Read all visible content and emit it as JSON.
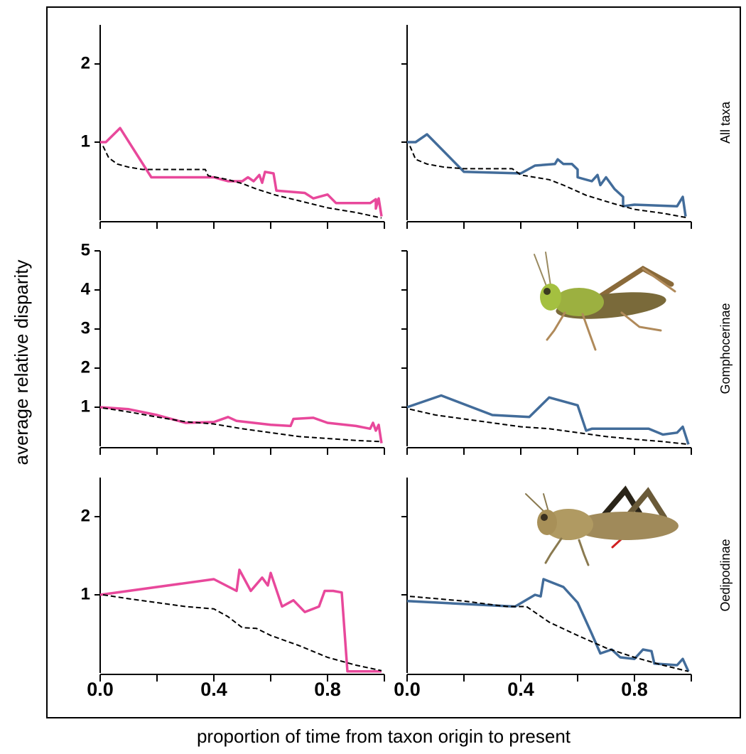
{
  "xlabel": "proportion of time from taxon origin to present",
  "ylabel": "average relative disparity",
  "chart_data": [
    {
      "type": "line",
      "xlim": [
        0,
        1
      ],
      "ylim": [
        0,
        2.5
      ],
      "yticks": [
        1,
        2
      ],
      "xtick_marks": [
        0,
        0.2,
        0.4,
        0.6,
        0.8,
        1.0
      ],
      "series": [
        {
          "color": "#e8489b",
          "dashed": false,
          "x": [
            0,
            0.02,
            0.07,
            0.18,
            0.4,
            0.45,
            0.5,
            0.52,
            0.54,
            0.56,
            0.57,
            0.58,
            0.61,
            0.62,
            0.72,
            0.75,
            0.8,
            0.83,
            0.95,
            0.97,
            0.97,
            0.98,
            0.99
          ],
          "values": [
            1.0,
            1.0,
            1.18,
            0.55,
            0.55,
            0.5,
            0.5,
            0.55,
            0.5,
            0.58,
            0.48,
            0.62,
            0.6,
            0.38,
            0.35,
            0.28,
            0.33,
            0.22,
            0.22,
            0.27,
            0.15,
            0.28,
            0.05
          ]
        },
        {
          "color": "#000000",
          "dashed": true,
          "x": [
            0.01,
            0.03,
            0.06,
            0.1,
            0.15,
            0.37,
            0.38,
            0.45,
            0.5,
            0.55,
            0.62,
            0.7,
            0.8,
            0.9,
            0.99
          ],
          "values": [
            0.95,
            0.8,
            0.72,
            0.68,
            0.65,
            0.65,
            0.57,
            0.52,
            0.47,
            0.4,
            0.32,
            0.25,
            0.16,
            0.1,
            0.03
          ]
        }
      ]
    },
    {
      "type": "line",
      "xlim": [
        0,
        1
      ],
      "ylim": [
        0,
        2.5
      ],
      "ytick_marks": [
        1,
        2
      ],
      "xtick_marks": [
        0,
        0.2,
        0.4,
        0.6,
        0.8,
        1.0
      ],
      "panel_label": "All taxa",
      "series": [
        {
          "color": "#426c9a",
          "dashed": false,
          "x": [
            0,
            0.03,
            0.07,
            0.2,
            0.4,
            0.45,
            0.52,
            0.53,
            0.55,
            0.58,
            0.6,
            0.6,
            0.65,
            0.67,
            0.68,
            0.7,
            0.73,
            0.76,
            0.76,
            0.8,
            0.95,
            0.97,
            0.98
          ],
          "values": [
            1.0,
            1.0,
            1.1,
            0.62,
            0.6,
            0.7,
            0.72,
            0.78,
            0.72,
            0.72,
            0.65,
            0.55,
            0.5,
            0.58,
            0.45,
            0.55,
            0.4,
            0.3,
            0.18,
            0.2,
            0.18,
            0.3,
            0.05
          ]
        },
        {
          "color": "#000000",
          "dashed": true,
          "x": [
            0.01,
            0.03,
            0.07,
            0.13,
            0.2,
            0.37,
            0.4,
            0.5,
            0.55,
            0.63,
            0.72,
            0.8,
            0.9,
            0.99
          ],
          "values": [
            0.95,
            0.78,
            0.72,
            0.68,
            0.66,
            0.66,
            0.58,
            0.52,
            0.45,
            0.32,
            0.22,
            0.14,
            0.09,
            0.03
          ]
        }
      ]
    },
    {
      "type": "line",
      "xlim": [
        0,
        1
      ],
      "ylim": [
        0,
        5
      ],
      "yticks": [
        1,
        2,
        3,
        4,
        5
      ],
      "xtick_marks": [
        0,
        0.2,
        0.4,
        0.6,
        0.8,
        1.0
      ],
      "series": [
        {
          "color": "#e8489b",
          "dashed": false,
          "x": [
            0,
            0.1,
            0.2,
            0.3,
            0.4,
            0.45,
            0.48,
            0.6,
            0.67,
            0.68,
            0.75,
            0.8,
            0.9,
            0.95,
            0.96,
            0.97,
            0.98,
            0.99
          ],
          "values": [
            1.0,
            0.95,
            0.8,
            0.6,
            0.62,
            0.75,
            0.65,
            0.55,
            0.52,
            0.7,
            0.73,
            0.6,
            0.52,
            0.45,
            0.6,
            0.4,
            0.55,
            0.08
          ]
        },
        {
          "color": "#000000",
          "dashed": true,
          "x": [
            0.01,
            0.1,
            0.2,
            0.3,
            0.4,
            0.5,
            0.6,
            0.7,
            0.8,
            0.9,
            0.99
          ],
          "values": [
            0.98,
            0.88,
            0.75,
            0.63,
            0.57,
            0.45,
            0.35,
            0.25,
            0.2,
            0.15,
            0.12
          ]
        }
      ]
    },
    {
      "type": "line",
      "xlim": [
        0,
        1
      ],
      "ylim": [
        0,
        5
      ],
      "ytick_marks": [
        1,
        2,
        3,
        4,
        5
      ],
      "xtick_marks": [
        0,
        0.2,
        0.4,
        0.6,
        0.8,
        1.0
      ],
      "panel_label": "Gomphocerinae",
      "series": [
        {
          "color": "#426c9a",
          "dashed": false,
          "x": [
            0,
            0.12,
            0.3,
            0.43,
            0.5,
            0.55,
            0.6,
            0.63,
            0.65,
            0.75,
            0.85,
            0.9,
            0.95,
            0.97,
            0.99
          ],
          "values": [
            1.0,
            1.3,
            0.8,
            0.75,
            1.25,
            1.15,
            1.05,
            0.4,
            0.45,
            0.45,
            0.45,
            0.3,
            0.35,
            0.5,
            0.05
          ]
        },
        {
          "color": "#000000",
          "dashed": true,
          "x": [
            0.01,
            0.1,
            0.2,
            0.3,
            0.4,
            0.5,
            0.6,
            0.7,
            0.8,
            0.9,
            0.99
          ],
          "values": [
            0.95,
            0.8,
            0.7,
            0.6,
            0.5,
            0.45,
            0.35,
            0.25,
            0.18,
            0.12,
            0.05
          ]
        }
      ]
    },
    {
      "type": "line",
      "xlim": [
        0,
        1
      ],
      "ylim": [
        0,
        2.5
      ],
      "yticks": [
        1,
        2
      ],
      "xtick_marks": [
        0,
        0.2,
        0.4,
        0.6,
        0.8,
        1.0
      ],
      "xticks": [
        {
          "value": 0,
          "label": "0.0"
        },
        0.4,
        0.8
      ],
      "series": [
        {
          "color": "#e8489b",
          "dashed": false,
          "x": [
            0,
            0.4,
            0.48,
            0.49,
            0.53,
            0.57,
            0.59,
            0.6,
            0.64,
            0.68,
            0.72,
            0.77,
            0.79,
            0.82,
            0.85,
            0.87,
            0.99
          ],
          "values": [
            1.0,
            1.2,
            1.05,
            1.32,
            1.05,
            1.22,
            1.12,
            1.28,
            0.85,
            0.93,
            0.78,
            0.85,
            1.05,
            1.05,
            1.03,
            0.02,
            0.02
          ]
        },
        {
          "color": "#000000",
          "dashed": true,
          "x": [
            0.01,
            0.1,
            0.2,
            0.3,
            0.4,
            0.45,
            0.5,
            0.55,
            0.6,
            0.7,
            0.8,
            0.9,
            0.99
          ],
          "values": [
            1.0,
            0.95,
            0.9,
            0.85,
            0.82,
            0.72,
            0.58,
            0.57,
            0.48,
            0.35,
            0.2,
            0.1,
            0.03
          ]
        }
      ]
    },
    {
      "type": "line",
      "xlim": [
        0,
        1
      ],
      "ylim": [
        0,
        2.5
      ],
      "ytick_marks": [
        1,
        2
      ],
      "xtick_marks": [
        0,
        0.2,
        0.4,
        0.6,
        0.8,
        1.0
      ],
      "xticks": [
        {
          "value": 0,
          "label": "0.0"
        },
        0.4,
        0.8
      ],
      "panel_label": "Oedipodinae",
      "series": [
        {
          "color": "#426c9a",
          "dashed": false,
          "x": [
            0,
            0.38,
            0.45,
            0.47,
            0.48,
            0.55,
            0.6,
            0.65,
            0.68,
            0.72,
            0.75,
            0.8,
            0.83,
            0.86,
            0.87,
            0.95,
            0.97,
            0.99
          ],
          "values": [
            0.92,
            0.85,
            1.0,
            0.98,
            1.2,
            1.1,
            0.9,
            0.5,
            0.25,
            0.3,
            0.2,
            0.18,
            0.3,
            0.28,
            0.12,
            0.1,
            0.18,
            0.02
          ]
        },
        {
          "color": "#000000",
          "dashed": true,
          "x": [
            0.01,
            0.2,
            0.35,
            0.42,
            0.5,
            0.6,
            0.7,
            0.8,
            0.9,
            0.99
          ],
          "values": [
            0.98,
            0.92,
            0.85,
            0.85,
            0.65,
            0.48,
            0.32,
            0.2,
            0.1,
            0.02
          ]
        }
      ]
    }
  ]
}
